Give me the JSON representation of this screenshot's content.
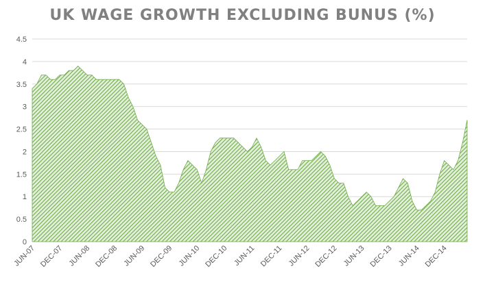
{
  "chart_data": {
    "type": "area",
    "title": "UK WAGE GROWTH EXCLUDING BUNUS (%)",
    "xlabel": "",
    "ylabel": "",
    "ylim": [
      0,
      4.5
    ],
    "y_ticks": [
      "0",
      "0.5",
      "1",
      "1.5",
      "2",
      "2.5",
      "3",
      "3.5",
      "4",
      "4.5"
    ],
    "x_tick_labels": [
      "JUN-07",
      "DEC-07",
      "JUN-08",
      "DEC-08",
      "JUN-09",
      "DEC-09",
      "JUN-10",
      "DEC-10",
      "JUN-11",
      "DEC-11",
      "JUN-12",
      "DEC-12",
      "JUN-13",
      "DEC-13",
      "JUN-14",
      "DEC-14"
    ],
    "start_label": "JUN-07",
    "grid": true,
    "legend": "none",
    "fill_color": "#70ad47",
    "hatch_background": "#e2efda",
    "series": [
      {
        "values": [
          3.4,
          3.5,
          3.7,
          3.7,
          3.6,
          3.6,
          3.7,
          3.7,
          3.8,
          3.8,
          3.9,
          3.8,
          3.7,
          3.7,
          3.6,
          3.6,
          3.6,
          3.6,
          3.6,
          3.6,
          3.5,
          3.2,
          3.0,
          2.7,
          2.6,
          2.5,
          2.2,
          1.9,
          1.7,
          1.2,
          1.1,
          1.1,
          1.3,
          1.6,
          1.8,
          1.7,
          1.6,
          1.3,
          1.6,
          2.0,
          2.2,
          2.3,
          2.3,
          2.3,
          2.3,
          2.2,
          2.1,
          2.0,
          2.1,
          2.3,
          2.1,
          1.8,
          1.7,
          1.8,
          1.9,
          2.0,
          1.6,
          1.6,
          1.6,
          1.8,
          1.8,
          1.8,
          1.9,
          2.0,
          1.9,
          1.7,
          1.4,
          1.3,
          1.3,
          1.0,
          0.8,
          0.9,
          1.0,
          1.1,
          1.0,
          0.8,
          0.8,
          0.8,
          0.9,
          1.0,
          1.2,
          1.4,
          1.3,
          0.9,
          0.7,
          0.7,
          0.8,
          0.9,
          1.1,
          1.5,
          1.8,
          1.7,
          1.6,
          1.8,
          2.2,
          2.7
        ]
      }
    ]
  }
}
